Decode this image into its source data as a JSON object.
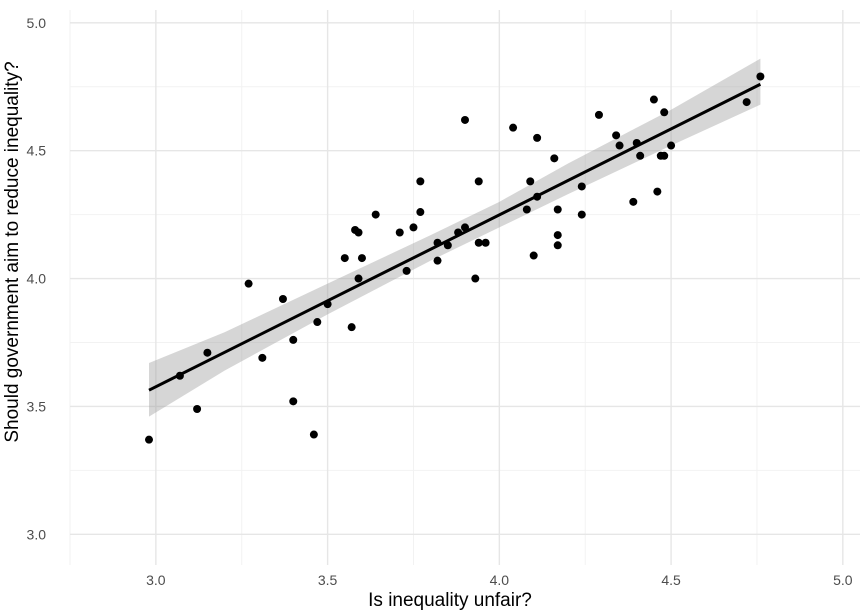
{
  "chart_data": {
    "type": "scatter",
    "title": "",
    "xlabel": "Is inequality unfair?",
    "ylabel": "Should government aim to reduce inequality?",
    "xlim": [
      2.75,
      5.05
    ],
    "ylim": [
      2.88,
      5.05
    ],
    "x_ticks": [
      3.0,
      3.5,
      4.0,
      4.5,
      5.0
    ],
    "x_tick_labels": [
      "3.0",
      "3.5",
      "4.0",
      "4.5",
      "5.0"
    ],
    "y_ticks": [
      3.0,
      3.5,
      4.0,
      4.5,
      5.0
    ],
    "y_tick_labels": [
      "3.0",
      "3.5",
      "4.0",
      "4.5",
      "5.0"
    ],
    "grid": true,
    "legend": "none",
    "series": [
      {
        "name": "points",
        "points": [
          [
            2.98,
            3.37
          ],
          [
            3.07,
            3.62
          ],
          [
            3.12,
            3.49
          ],
          [
            3.15,
            3.71
          ],
          [
            3.27,
            3.98
          ],
          [
            3.31,
            3.69
          ],
          [
            3.37,
            3.92
          ],
          [
            3.4,
            3.76
          ],
          [
            3.4,
            3.52
          ],
          [
            3.46,
            3.39
          ],
          [
            3.47,
            3.83
          ],
          [
            3.5,
            3.9
          ],
          [
            3.55,
            4.08
          ],
          [
            3.57,
            3.81
          ],
          [
            3.58,
            4.19
          ],
          [
            3.59,
            4.18
          ],
          [
            3.59,
            4.0
          ],
          [
            3.6,
            4.08
          ],
          [
            3.64,
            4.25
          ],
          [
            3.71,
            4.18
          ],
          [
            3.73,
            4.03
          ],
          [
            3.75,
            4.2
          ],
          [
            3.77,
            4.38
          ],
          [
            3.77,
            4.26
          ],
          [
            3.82,
            4.14
          ],
          [
            3.82,
            4.07
          ],
          [
            3.85,
            4.13
          ],
          [
            3.88,
            4.18
          ],
          [
            3.9,
            4.2
          ],
          [
            3.9,
            4.62
          ],
          [
            3.93,
            4.0
          ],
          [
            3.94,
            4.14
          ],
          [
            3.94,
            4.38
          ],
          [
            3.96,
            4.14
          ],
          [
            4.04,
            4.59
          ],
          [
            4.08,
            4.27
          ],
          [
            4.09,
            4.38
          ],
          [
            4.1,
            4.09
          ],
          [
            4.11,
            4.32
          ],
          [
            4.11,
            4.55
          ],
          [
            4.16,
            4.47
          ],
          [
            4.17,
            4.27
          ],
          [
            4.17,
            4.17
          ],
          [
            4.17,
            4.13
          ],
          [
            4.24,
            4.36
          ],
          [
            4.24,
            4.25
          ],
          [
            4.29,
            4.64
          ],
          [
            4.34,
            4.56
          ],
          [
            4.35,
            4.52
          ],
          [
            4.39,
            4.3
          ],
          [
            4.4,
            4.53
          ],
          [
            4.41,
            4.48
          ],
          [
            4.45,
            4.7
          ],
          [
            4.46,
            4.34
          ],
          [
            4.47,
            4.48
          ],
          [
            4.48,
            4.48
          ],
          [
            4.48,
            4.65
          ],
          [
            4.5,
            4.52
          ],
          [
            4.72,
            4.69
          ],
          [
            4.76,
            4.79
          ]
        ]
      }
    ],
    "regression": {
      "x_range": [
        2.98,
        4.76
      ],
      "intercept": 1.561,
      "slope": 0.672,
      "ci": [
        [
          2.98,
          3.46,
          3.67
        ],
        [
          3.2,
          3.64,
          3.79
        ],
        [
          3.5,
          3.86,
          3.98
        ],
        [
          3.8,
          4.07,
          4.17
        ],
        [
          4.0,
          4.2,
          4.3
        ],
        [
          4.2,
          4.33,
          4.45
        ],
        [
          4.5,
          4.52,
          4.66
        ],
        [
          4.76,
          4.68,
          4.86
        ]
      ]
    }
  }
}
